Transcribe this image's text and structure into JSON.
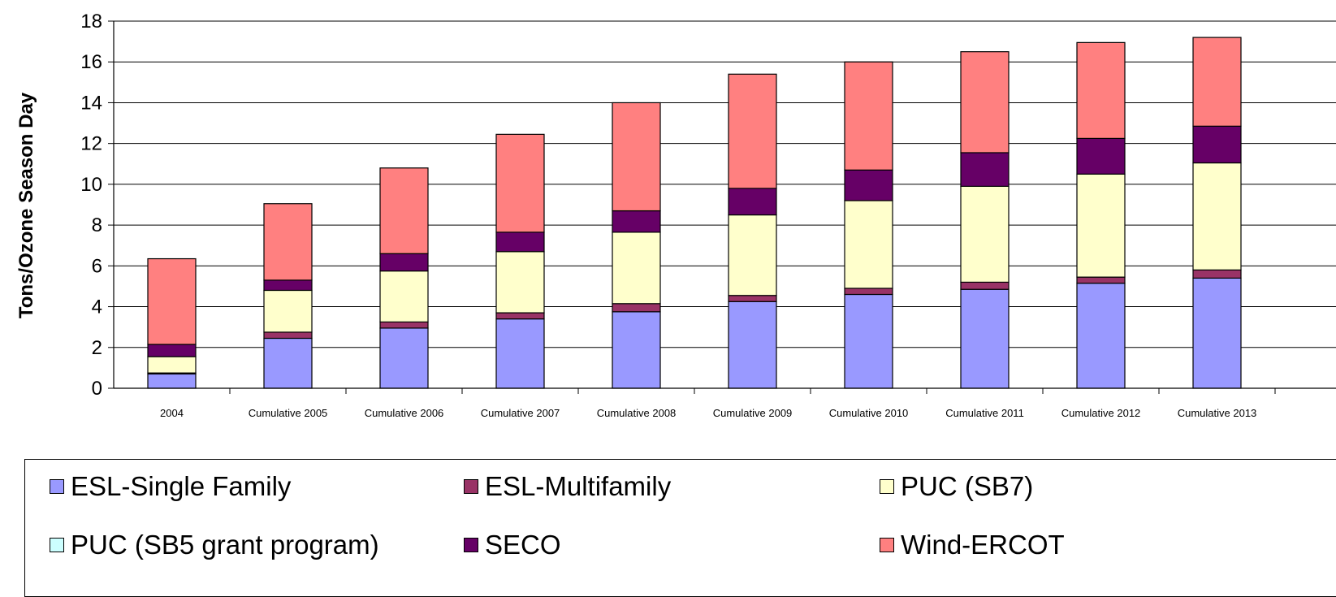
{
  "chart_data": {
    "type": "bar",
    "stacked": true,
    "title": "",
    "xlabel": "",
    "ylabel": "Tons/Ozone Season Day",
    "ylim": [
      0,
      18
    ],
    "yticks": [
      0,
      2,
      4,
      6,
      8,
      10,
      12,
      14,
      16,
      18
    ],
    "grid": true,
    "legend_position": "bottom",
    "categories": [
      "2004",
      "Cumulative 2005",
      "Cumulative 2006",
      "Cumulative 2007",
      "Cumulative 2008",
      "Cumulative 2009",
      "Cumulative 2010",
      "Cumulative 2011",
      "Cumulative 2012",
      "Cumulative 2013"
    ],
    "series": [
      {
        "name": "ESL-Single Family",
        "color": "#9999ff",
        "values": [
          0.7,
          2.45,
          2.95,
          3.4,
          3.75,
          4.25,
          4.6,
          4.85,
          5.15,
          5.4
        ]
      },
      {
        "name": "ESL-Multifamily",
        "color": "#993366",
        "values": [
          0.05,
          0.3,
          0.3,
          0.3,
          0.4,
          0.3,
          0.3,
          0.35,
          0.3,
          0.4
        ]
      },
      {
        "name": "PUC (SB7)",
        "color": "#ffffcc",
        "values": [
          0.8,
          2.05,
          2.5,
          3.0,
          3.5,
          3.95,
          4.3,
          4.7,
          5.05,
          5.25
        ]
      },
      {
        "name": "PUC (SB5 grant program)",
        "color": "#ccffff",
        "values": [
          0,
          0,
          0,
          0,
          0,
          0,
          0,
          0,
          0,
          0
        ]
      },
      {
        "name": "SECO",
        "color": "#660066",
        "values": [
          0.6,
          0.5,
          0.85,
          0.95,
          1.05,
          1.3,
          1.5,
          1.65,
          1.75,
          1.8
        ]
      },
      {
        "name": "Wind-ERCOT",
        "color": "#ff8080",
        "values": [
          4.2,
          3.75,
          4.2,
          4.8,
          5.3,
          5.6,
          5.3,
          4.95,
          4.7,
          4.35
        ]
      }
    ]
  }
}
